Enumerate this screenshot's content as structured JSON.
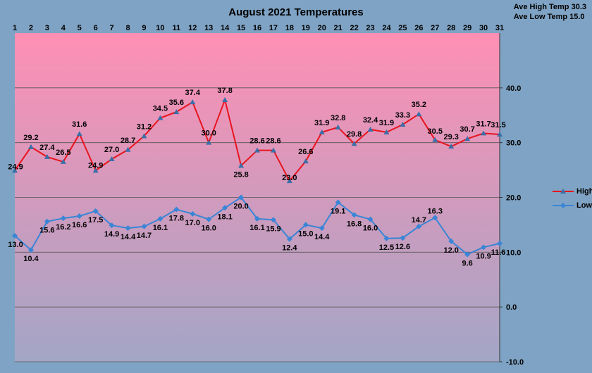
{
  "chart_data": {
    "type": "line",
    "title": "August 2021 Temperatures",
    "summary": {
      "ave_high": "Ave High Temp 30.3",
      "ave_low": "Ave Low Temp 15.0"
    },
    "categories": [
      "1",
      "2",
      "3",
      "4",
      "5",
      "6",
      "7",
      "8",
      "9",
      "10",
      "11",
      "12",
      "13",
      "14",
      "15",
      "16",
      "17",
      "18",
      "19",
      "20",
      "21",
      "22",
      "23",
      "24",
      "25",
      "26",
      "27",
      "28",
      "29",
      "30",
      "31"
    ],
    "series": [
      {
        "name": "High",
        "color": "#e8141e",
        "marker": "triangle",
        "values": [
          24.9,
          29.2,
          27.4,
          26.5,
          31.6,
          24.9,
          27.0,
          28.7,
          31.2,
          34.5,
          35.6,
          37.4,
          30.0,
          37.8,
          25.8,
          28.6,
          28.6,
          23.0,
          26.6,
          31.9,
          32.8,
          29.8,
          32.4,
          31.9,
          33.3,
          35.2,
          30.5,
          29.3,
          30.7,
          31.7,
          31.5
        ]
      },
      {
        "name": "Low",
        "color": "#3a85d6",
        "marker": "diamond",
        "values": [
          13.0,
          10.4,
          15.6,
          16.2,
          16.6,
          17.5,
          14.9,
          14.4,
          14.7,
          16.1,
          17.8,
          17.0,
          16.0,
          18.1,
          20.0,
          16.1,
          15.9,
          12.4,
          15.0,
          14.4,
          19.1,
          16.8,
          16.0,
          12.5,
          12.6,
          14.7,
          16.3,
          12.0,
          9.6,
          10.9,
          11.6
        ]
      }
    ],
    "ylim": [
      -10,
      50
    ],
    "yticks": [
      "-10.0",
      "0.0",
      "10.0",
      "20.0",
      "30.0",
      "40.0"
    ],
    "x_axis_position": "top",
    "y_axis_position": "right",
    "grid": true,
    "legend_position": "right",
    "colors": {
      "outer_background": "#7fa3c4",
      "plot_gradient_top": "#ff8fb4",
      "plot_gradient_bottom": "#a3a6c6",
      "gridline": "#555555"
    }
  }
}
